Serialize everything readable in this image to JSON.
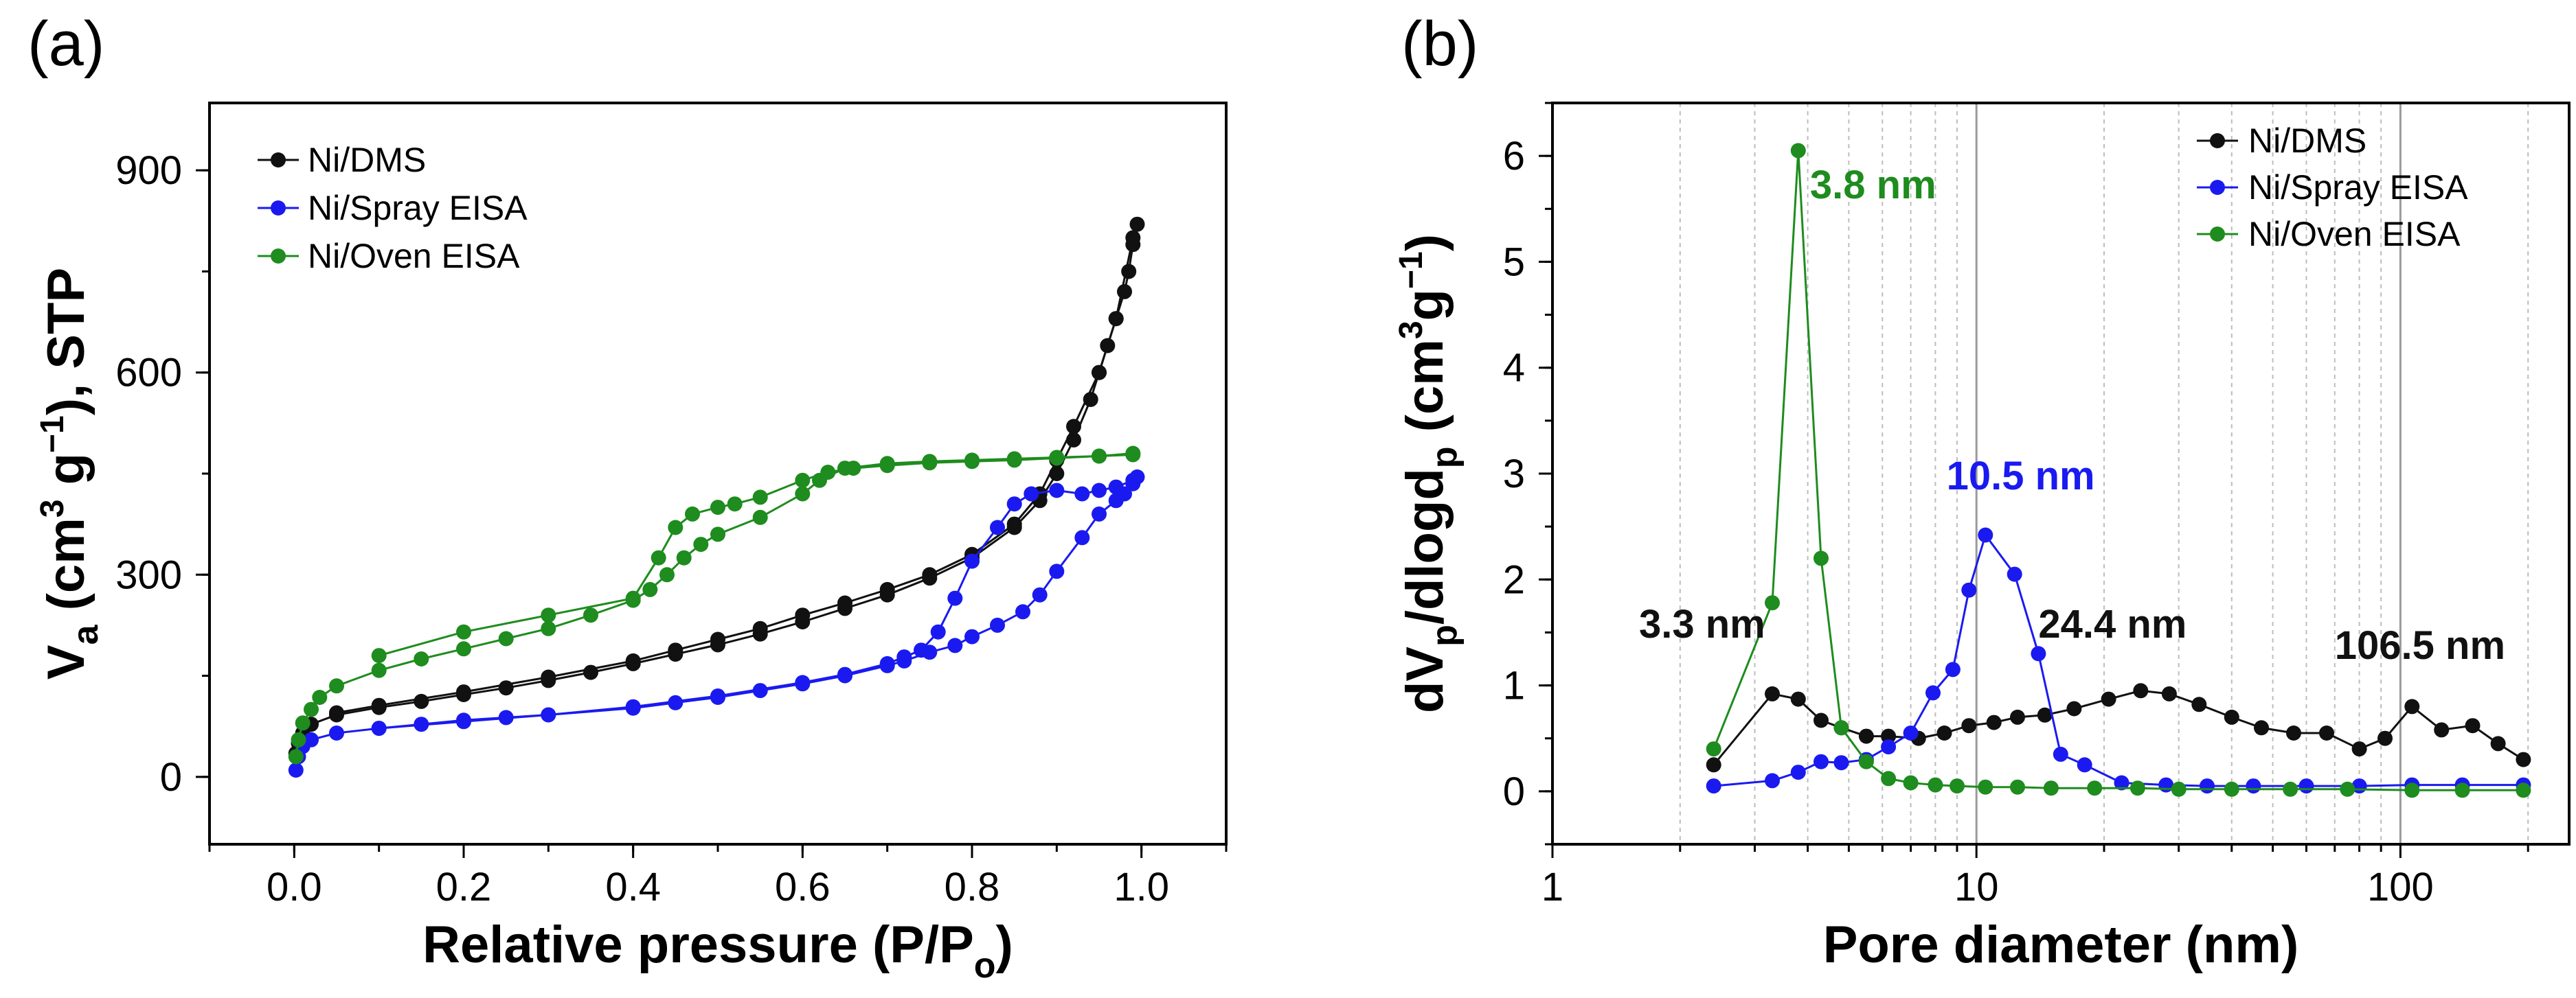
{
  "colors": {
    "dms": "#111111",
    "spray": "#1a1af0",
    "oven": "#1e8c1e"
  },
  "chart_data": [
    {
      "panel": "(a)",
      "type": "line",
      "xlabel_main": "Relative pressure (P/P",
      "xlabel_sub": "o",
      "xlabel_end": ")",
      "ylabel_parts": {
        "v": "V",
        "a": "a",
        "open": " (cm",
        "three": "3",
        "g": " g",
        "minus1": "−1",
        "close": "), STP"
      },
      "xlim": [
        -0.1,
        1.1
      ],
      "ylim": [
        -100,
        1000
      ],
      "xticks": [
        0.0,
        0.2,
        0.4,
        0.6,
        0.8,
        1.0
      ],
      "xtick_labels": [
        "0.0",
        "0.2",
        "0.4",
        "0.6",
        "0.8",
        "1.0"
      ],
      "yticks": [
        0,
        300,
        600,
        900
      ],
      "ytick_labels": [
        "0",
        "300",
        "600",
        "900"
      ],
      "legend": [
        "Ni/DMS",
        "Ni/Spray EISA",
        "Ni/Oven EISA"
      ],
      "series": [
        {
          "name": "Ni/DMS",
          "color_key": "dms",
          "adsorption": {
            "x": [
              0.002,
              0.005,
              0.01,
              0.02,
              0.05,
              0.1,
              0.15,
              0.2,
              0.25,
              0.3,
              0.35,
              0.4,
              0.45,
              0.5,
              0.55,
              0.6,
              0.65,
              0.7,
              0.75,
              0.8,
              0.85,
              0.88,
              0.9,
              0.92,
              0.94,
              0.95,
              0.96,
              0.97,
              0.98,
              0.985,
              0.99,
              0.995
            ],
            "y": [
              35,
              50,
              65,
              78,
              92,
              103,
              112,
              122,
              132,
              143,
              155,
              168,
              182,
              196,
              212,
              230,
              250,
              270,
              295,
              325,
              370,
              410,
              450,
              500,
              560,
              600,
              640,
              680,
              720,
              750,
              790,
              820
            ]
          },
          "desorption": {
            "x": [
              0.99,
              0.97,
              0.95,
              0.92,
              0.9,
              0.88,
              0.85,
              0.8,
              0.75,
              0.7,
              0.65,
              0.6,
              0.55,
              0.5,
              0.45,
              0.4,
              0.3,
              0.2,
              0.1,
              0.05
            ],
            "y": [
              800,
              680,
              600,
              520,
              470,
              420,
              375,
              330,
              300,
              278,
              258,
              240,
              220,
              204,
              188,
              172,
              148,
              126,
              106,
              95
            ]
          }
        },
        {
          "name": "Ni/Spray EISA",
          "color_key": "spray",
          "adsorption": {
            "x": [
              0.002,
              0.005,
              0.01,
              0.02,
              0.05,
              0.1,
              0.15,
              0.2,
              0.25,
              0.3,
              0.4,
              0.45,
              0.5,
              0.55,
              0.6,
              0.65,
              0.7,
              0.72,
              0.75,
              0.78,
              0.8,
              0.83,
              0.86,
              0.88,
              0.9,
              0.93,
              0.95,
              0.97,
              0.98,
              0.99,
              0.995
            ],
            "y": [
              10,
              30,
              45,
              55,
              65,
              72,
              78,
              84,
              88,
              92,
              102,
              110,
              118,
              128,
              138,
              150,
              165,
              172,
              185,
              195,
              208,
              225,
              245,
              270,
              305,
              355,
              390,
              410,
              420,
              435,
              445
            ]
          },
          "desorption": {
            "x": [
              0.99,
              0.97,
              0.95,
              0.93,
              0.9,
              0.87,
              0.85,
              0.83,
              0.8,
              0.78,
              0.76,
              0.74,
              0.72,
              0.7,
              0.65,
              0.6,
              0.5,
              0.4,
              0.3,
              0.2,
              0.1
            ],
            "y": [
              440,
              430,
              425,
              420,
              425,
              420,
              405,
              370,
              320,
              265,
              215,
              188,
              178,
              168,
              152,
              140,
              120,
              104,
              92,
              82,
              72
            ]
          }
        },
        {
          "name": "Ni/Oven EISA",
          "color_key": "oven",
          "adsorption": {
            "x": [
              0.002,
              0.005,
              0.01,
              0.02,
              0.03,
              0.05,
              0.1,
              0.15,
              0.2,
              0.25,
              0.3,
              0.35,
              0.4,
              0.42,
              0.44,
              0.46,
              0.48,
              0.5,
              0.55,
              0.6,
              0.62,
              0.65,
              0.7,
              0.75,
              0.8,
              0.85,
              0.9,
              0.95,
              0.99
            ],
            "y": [
              30,
              55,
              80,
              100,
              118,
              135,
              158,
              175,
              190,
              205,
              220,
              240,
              262,
              278,
              300,
              325,
              345,
              360,
              385,
              420,
              440,
              458,
              465,
              468,
              470,
              472,
              474,
              476,
              480
            ]
          },
          "desorption": {
            "x": [
              0.99,
              0.95,
              0.9,
              0.85,
              0.8,
              0.75,
              0.7,
              0.66,
              0.63,
              0.6,
              0.55,
              0.52,
              0.5,
              0.47,
              0.45,
              0.43,
              0.4,
              0.3,
              0.2,
              0.1
            ],
            "y": [
              478,
              476,
              473,
              470,
              468,
              466,
              462,
              458,
              452,
              440,
              415,
              405,
              400,
              390,
              370,
              325,
              265,
              240,
              215,
              180
            ]
          }
        }
      ]
    },
    {
      "panel": "(b)",
      "type": "line",
      "xscale": "log",
      "xlabel": "Pore diameter (nm)",
      "ylabel_parts": {
        "d": "dV",
        "p1": "p",
        "mid": "/dlogd",
        "p2": "p",
        "open": " (cm",
        "three": "3",
        "g": "g",
        "minus1": "−1",
        "close": ")"
      },
      "xlim": [
        1,
        250
      ],
      "ylim": [
        -0.5,
        6.5
      ],
      "xticks": [
        1,
        10,
        100
      ],
      "xtick_labels": [
        "1",
        "10",
        "100"
      ],
      "yticks": [
        0,
        1,
        2,
        3,
        4,
        5,
        6
      ],
      "ytick_labels": [
        "0",
        "1",
        "2",
        "3",
        "4",
        "5",
        "6"
      ],
      "legend": [
        "Ni/DMS",
        "Ni/Spray EISA",
        "Ni/Oven EISA"
      ],
      "annotations": [
        {
          "text": "3.8 nm",
          "color_key": "oven",
          "x": 4.05,
          "y": 5.6
        },
        {
          "text": "10.5 nm",
          "color_key": "spray",
          "x": 8.5,
          "y": 2.85
        },
        {
          "text": "3.3 nm",
          "color_key": "dms",
          "x": 1.6,
          "y": 1.45
        },
        {
          "text": "24.4 nm",
          "color_key": "dms",
          "x": 14,
          "y": 1.45
        },
        {
          "text": "106.5 nm",
          "color_key": "dms",
          "x": 70,
          "y": 1.25
        }
      ],
      "series": [
        {
          "name": "Ni/DMS",
          "color_key": "dms",
          "x": [
            2.4,
            3.3,
            3.8,
            4.3,
            4.8,
            5.5,
            6.2,
            7.3,
            8.4,
            9.6,
            11,
            12.5,
            14.5,
            17,
            20.5,
            24.4,
            28.5,
            33.5,
            40,
            47,
            56,
            67,
            80,
            92,
            106.5,
            125,
            148,
            170,
            195
          ],
          "y": [
            0.25,
            0.92,
            0.87,
            0.67,
            0.6,
            0.52,
            0.52,
            0.5,
            0.55,
            0.62,
            0.65,
            0.7,
            0.72,
            0.78,
            0.87,
            0.95,
            0.92,
            0.82,
            0.7,
            0.6,
            0.55,
            0.55,
            0.4,
            0.5,
            0.8,
            0.58,
            0.62,
            0.45,
            0.3
          ]
        },
        {
          "name": "Ni/Spray EISA",
          "color_key": "spray",
          "x": [
            2.4,
            3.3,
            3.8,
            4.3,
            4.8,
            5.5,
            6.2,
            7.0,
            7.9,
            8.8,
            9.6,
            10.5,
            12.3,
            14,
            15.8,
            18,
            22,
            28,
            35,
            45,
            60,
            80,
            106.5,
            140,
            195
          ],
          "y": [
            0.05,
            0.1,
            0.18,
            0.28,
            0.27,
            0.3,
            0.42,
            0.55,
            0.93,
            1.15,
            1.9,
            2.42,
            2.05,
            1.3,
            0.35,
            0.25,
            0.08,
            0.06,
            0.05,
            0.05,
            0.05,
            0.05,
            0.06,
            0.06,
            0.06
          ]
        },
        {
          "name": "Ni/Oven EISA",
          "color_key": "oven",
          "x": [
            2.4,
            3.3,
            3.8,
            4.3,
            4.8,
            5.5,
            6.2,
            7.0,
            8.0,
            9.0,
            10.5,
            12.5,
            15,
            19,
            24,
            30,
            40,
            55,
            75,
            106.5,
            140,
            195
          ],
          "y": [
            0.4,
            1.78,
            6.05,
            2.2,
            0.6,
            0.28,
            0.12,
            0.08,
            0.06,
            0.05,
            0.04,
            0.04,
            0.03,
            0.03,
            0.03,
            0.02,
            0.02,
            0.02,
            0.02,
            0.01,
            0.01,
            0.01
          ]
        }
      ]
    }
  ]
}
